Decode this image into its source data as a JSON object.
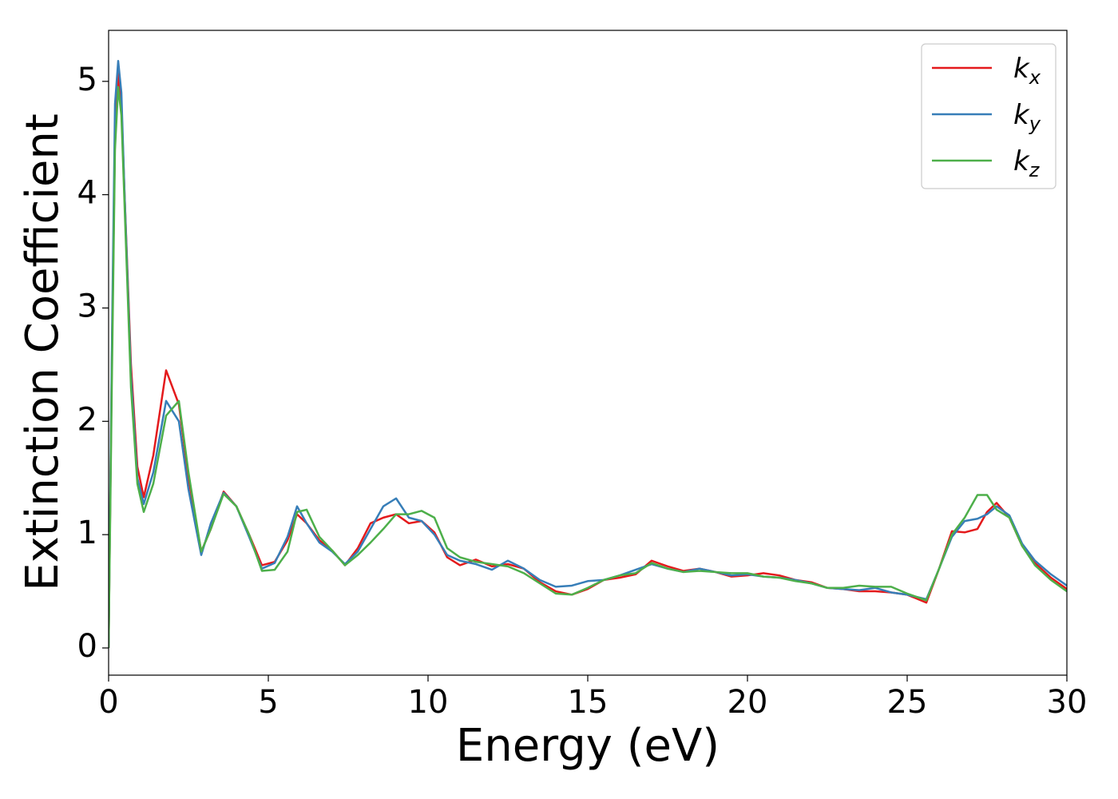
{
  "chart_data": {
    "type": "line",
    "xlabel": "Energy (eV)",
    "ylabel": "Extinction Coefficient",
    "x": [
      0,
      0.1,
      0.2,
      0.3,
      0.4,
      0.5,
      0.7,
      0.9,
      1.1,
      1.4,
      1.8,
      2.2,
      2.5,
      2.9,
      3.2,
      3.6,
      4.0,
      4.4,
      4.8,
      5.2,
      5.6,
      5.9,
      6.2,
      6.6,
      7.0,
      7.4,
      7.8,
      8.2,
      8.6,
      9.0,
      9.4,
      9.8,
      10.2,
      10.6,
      11.0,
      11.5,
      12.0,
      12.5,
      13.0,
      13.5,
      14.0,
      14.5,
      15.0,
      15.5,
      16.0,
      16.5,
      17.0,
      17.5,
      18.0,
      18.5,
      19.0,
      19.5,
      20.0,
      20.5,
      21.0,
      21.5,
      22.0,
      22.5,
      23.0,
      23.5,
      24.0,
      24.5,
      25.0,
      25.6,
      26.0,
      26.4,
      26.8,
      27.2,
      27.5,
      27.8,
      28.2,
      28.6,
      29.0,
      29.5,
      30.0
    ],
    "series": [
      {
        "name": "kx",
        "color": "#e41a1c",
        "values": [
          0,
          2.5,
          4.5,
          5.08,
          4.8,
          4.0,
          2.5,
          1.6,
          1.33,
          1.7,
          2.45,
          2.15,
          1.5,
          0.85,
          1.05,
          1.38,
          1.25,
          1.0,
          0.73,
          0.76,
          0.95,
          1.18,
          1.1,
          0.95,
          0.86,
          0.73,
          0.88,
          1.1,
          1.15,
          1.18,
          1.1,
          1.12,
          1.02,
          0.8,
          0.73,
          0.78,
          0.72,
          0.74,
          0.7,
          0.58,
          0.5,
          0.47,
          0.52,
          0.6,
          0.62,
          0.65,
          0.77,
          0.72,
          0.68,
          0.7,
          0.67,
          0.63,
          0.64,
          0.66,
          0.64,
          0.6,
          0.58,
          0.53,
          0.52,
          0.5,
          0.5,
          0.49,
          0.47,
          0.4,
          0.7,
          1.03,
          1.02,
          1.05,
          1.2,
          1.28,
          1.15,
          0.9,
          0.75,
          0.62,
          0.52
        ]
      },
      {
        "name": "ky",
        "color": "#377eb8",
        "values": [
          0,
          2.6,
          4.8,
          5.18,
          4.9,
          4.0,
          2.4,
          1.5,
          1.27,
          1.55,
          2.18,
          2.0,
          1.4,
          0.82,
          1.1,
          1.37,
          1.25,
          0.98,
          0.7,
          0.75,
          0.98,
          1.25,
          1.1,
          0.93,
          0.85,
          0.74,
          0.85,
          1.05,
          1.25,
          1.32,
          1.15,
          1.12,
          1.0,
          0.82,
          0.77,
          0.74,
          0.69,
          0.77,
          0.7,
          0.6,
          0.54,
          0.55,
          0.59,
          0.6,
          0.64,
          0.69,
          0.74,
          0.7,
          0.67,
          0.7,
          0.67,
          0.64,
          0.65,
          0.63,
          0.62,
          0.6,
          0.57,
          0.53,
          0.52,
          0.51,
          0.53,
          0.49,
          0.47,
          0.43,
          0.7,
          0.98,
          1.12,
          1.14,
          1.18,
          1.25,
          1.17,
          0.92,
          0.77,
          0.65,
          0.55
        ]
      },
      {
        "name": "kz",
        "color": "#4daf4a",
        "values": [
          0,
          2.3,
          4.4,
          4.95,
          4.7,
          3.9,
          2.3,
          1.45,
          1.2,
          1.45,
          2.05,
          2.18,
          1.55,
          0.85,
          1.05,
          1.36,
          1.25,
          1.0,
          0.68,
          0.69,
          0.85,
          1.2,
          1.22,
          0.98,
          0.86,
          0.73,
          0.82,
          0.93,
          1.05,
          1.18,
          1.18,
          1.21,
          1.15,
          0.88,
          0.8,
          0.76,
          0.74,
          0.72,
          0.66,
          0.57,
          0.48,
          0.47,
          0.53,
          0.6,
          0.64,
          0.66,
          0.75,
          0.7,
          0.67,
          0.68,
          0.67,
          0.66,
          0.66,
          0.63,
          0.62,
          0.59,
          0.57,
          0.53,
          0.53,
          0.55,
          0.54,
          0.54,
          0.48,
          0.42,
          0.7,
          1.0,
          1.15,
          1.35,
          1.35,
          1.22,
          1.15,
          0.9,
          0.73,
          0.6,
          0.5
        ]
      }
    ],
    "xlim": [
      0,
      30
    ],
    "xticks": [
      0,
      5,
      10,
      15,
      20,
      25,
      30
    ],
    "ylim": [
      -0.24,
      5.45
    ],
    "yticks": [
      0,
      1,
      2,
      3,
      4,
      5
    ],
    "grid": false,
    "legend": "upper right"
  }
}
